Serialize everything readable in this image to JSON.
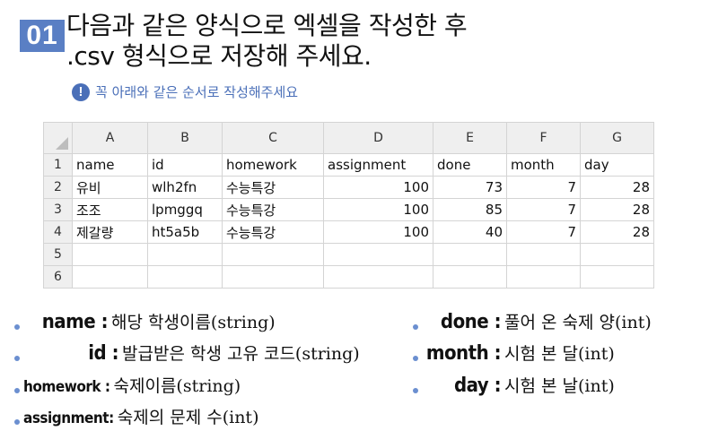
{
  "step": {
    "number": "01"
  },
  "title": {
    "line1": "다음과 같은 양식으로 엑셀을 작성한 후",
    "line2": ".csv 형식으로 저장해 주세요."
  },
  "notice": {
    "icon": "exclamation-icon",
    "text": "꼭 아래와 같은 순서로 작성해주세요"
  },
  "sheet": {
    "columns": [
      "A",
      "B",
      "C",
      "D",
      "E",
      "F",
      "G"
    ],
    "rows": [
      {
        "num": "1",
        "cells": [
          "name",
          "id",
          "homework",
          "assignment",
          "done",
          "month",
          "day"
        ]
      },
      {
        "num": "2",
        "cells": [
          "유비",
          "wlh2fn",
          "수능특강",
          "100",
          "73",
          "7",
          "28"
        ]
      },
      {
        "num": "3",
        "cells": [
          "조조",
          "lpmggq",
          "수능특강",
          "100",
          "85",
          "7",
          "28"
        ]
      },
      {
        "num": "4",
        "cells": [
          "제갈량",
          "ht5a5b",
          "수능특강",
          "100",
          "40",
          "7",
          "28"
        ]
      },
      {
        "num": "5",
        "cells": [
          "",
          "",
          "",
          "",
          "",
          "",
          ""
        ]
      },
      {
        "num": "6",
        "cells": [
          "",
          "",
          "",
          "",
          "",
          "",
          ""
        ]
      }
    ]
  },
  "definitions": {
    "name": {
      "term": "name :",
      "desc": "해당 학생이름(string)"
    },
    "id": {
      "term": "id :",
      "desc": "발급받은 학생 고유 코드(string)"
    },
    "homework": {
      "term": "homework :",
      "desc": "숙제이름(string)"
    },
    "assignment": {
      "term": "assignment:",
      "desc": "숙제의 문제 수(int)"
    },
    "done": {
      "term": "done :",
      "desc": "풀어 온 숙제 양(int)"
    },
    "month": {
      "term": "month :",
      "desc": "시험 본 달(int)"
    },
    "day": {
      "term": "day :",
      "desc": "시험 본 날(int)"
    }
  },
  "colors": {
    "accent": "#5a7fc4",
    "notice": "#4a6fb8",
    "bullet": "#6b8fd0"
  }
}
